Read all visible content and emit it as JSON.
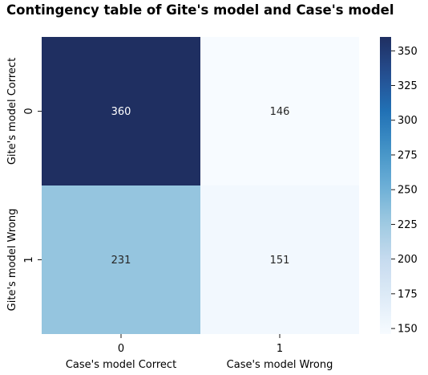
{
  "chart_data": {
    "type": "heatmap",
    "title": "Contingency table of Gite's model and Case's model",
    "x_tick_labels": [
      "0",
      "1"
    ],
    "y_tick_labels": [
      "0",
      "1"
    ],
    "x_category_labels": [
      "Case's model Correct",
      "Case's model Wrong"
    ],
    "y_category_labels": [
      "Gite's model Correct",
      "Gite's model Wrong"
    ],
    "values": [
      [
        360,
        146
      ],
      [
        231,
        151
      ]
    ],
    "colorbar": {
      "range": [
        146,
        360
      ],
      "ticks": [
        150,
        175,
        200,
        225,
        250,
        275,
        300,
        325,
        350
      ],
      "colormap": "Blues",
      "color_low": "#f7fbff",
      "color_high": "#1f2f61"
    },
    "annotation_colors": {
      "on_dark": "#ffffff",
      "on_light": "#262626"
    }
  }
}
